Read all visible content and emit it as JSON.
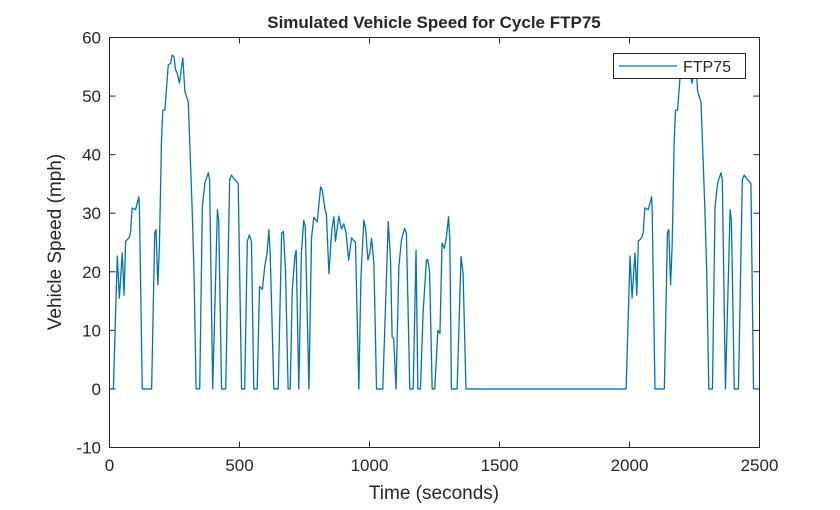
{
  "chart_data": {
    "type": "line",
    "title": "Simulated Vehicle Speed for Cycle FTP75",
    "xlabel": "Time (seconds)",
    "ylabel": "Vehicle Speed (mph)",
    "xlim": [
      0,
      2500
    ],
    "ylim": [
      -10,
      60
    ],
    "xticks": [
      0,
      500,
      1000,
      1500,
      2000,
      2500
    ],
    "yticks": [
      -10,
      0,
      10,
      20,
      30,
      40,
      50,
      60
    ],
    "grid": false,
    "legend": {
      "placement": "top-right",
      "entries": [
        "FTP75"
      ]
    },
    "series": [
      {
        "name": "FTP75",
        "color": "#0072BD",
        "points": [
          [
            0,
            0
          ],
          [
            15,
            0
          ],
          [
            30,
            22.7
          ],
          [
            38,
            15.5
          ],
          [
            49,
            23.2
          ],
          [
            56,
            16
          ],
          [
            62,
            25.2
          ],
          [
            75,
            25.8
          ],
          [
            81,
            26.8
          ],
          [
            87,
            30.9
          ],
          [
            100,
            30.6
          ],
          [
            113,
            32.8
          ],
          [
            115,
            31
          ],
          [
            126,
            0
          ],
          [
            162,
            0
          ],
          [
            174,
            26.7
          ],
          [
            179,
            27.2
          ],
          [
            186,
            17.8
          ],
          [
            192,
            24.4
          ],
          [
            200,
            42.5
          ],
          [
            205,
            47.6
          ],
          [
            213,
            47.6
          ],
          [
            226,
            55.3
          ],
          [
            235,
            55.6
          ],
          [
            241,
            57
          ],
          [
            248,
            56.7
          ],
          [
            254,
            54.5
          ],
          [
            260,
            54
          ],
          [
            269,
            52.2
          ],
          [
            277,
            55
          ],
          [
            282,
            56.5
          ],
          [
            290,
            50.8
          ],
          [
            303,
            49
          ],
          [
            312,
            38
          ],
          [
            318,
            30.6
          ],
          [
            325,
            20
          ],
          [
            333,
            0
          ],
          [
            347,
            0
          ],
          [
            357,
            31
          ],
          [
            367,
            35.2
          ],
          [
            380,
            36.9
          ],
          [
            385,
            35.7
          ],
          [
            397,
            0
          ],
          [
            415,
            30.6
          ],
          [
            420,
            28.8
          ],
          [
            431,
            0
          ],
          [
            447,
            0
          ],
          [
            462,
            35.7
          ],
          [
            469,
            36.5
          ],
          [
            482,
            35.7
          ],
          [
            495,
            35.1
          ],
          [
            508,
            0
          ],
          [
            520,
            0
          ],
          [
            530,
            25.2
          ],
          [
            538,
            26.3
          ],
          [
            546,
            25.2
          ],
          [
            555,
            0
          ],
          [
            568,
            0
          ],
          [
            577,
            17.5
          ],
          [
            588,
            17
          ],
          [
            597,
            20.9
          ],
          [
            606,
            23.2
          ],
          [
            613,
            27.2
          ],
          [
            618,
            23.2
          ],
          [
            632,
            0
          ],
          [
            649,
            0
          ],
          [
            662,
            26.6
          ],
          [
            669,
            26.9
          ],
          [
            677,
            20
          ],
          [
            687,
            0
          ],
          [
            695,
            0
          ],
          [
            703,
            16.9
          ],
          [
            713,
            22.6
          ],
          [
            718,
            23.7
          ],
          [
            728,
            0
          ],
          [
            738,
            23.2
          ],
          [
            747,
            28.8
          ],
          [
            753,
            27.7
          ],
          [
            767,
            0
          ],
          [
            777,
            25.8
          ],
          [
            786,
            29.3
          ],
          [
            799,
            28.5
          ],
          [
            812,
            34.5
          ],
          [
            818,
            34
          ],
          [
            829,
            30.6
          ],
          [
            834,
            30
          ],
          [
            844,
            19.7
          ],
          [
            855,
            27.2
          ],
          [
            863,
            29.4
          ],
          [
            869,
            25.2
          ],
          [
            882,
            29.5
          ],
          [
            892,
            27.3
          ],
          [
            901,
            28.2
          ],
          [
            910,
            26.6
          ],
          [
            920,
            22
          ],
          [
            931,
            25.8
          ],
          [
            946,
            25
          ],
          [
            959,
            0
          ],
          [
            967,
            19
          ],
          [
            978,
            28.8
          ],
          [
            985,
            27.4
          ],
          [
            994,
            22
          ],
          [
            1001,
            23.2
          ],
          [
            1008,
            25.7
          ],
          [
            1017,
            21.3
          ],
          [
            1027,
            0
          ],
          [
            1051,
            0
          ],
          [
            1063,
            16
          ],
          [
            1072,
            28.6
          ],
          [
            1081,
            22
          ],
          [
            1087,
            8.9
          ],
          [
            1093,
            8.6
          ],
          [
            1102,
            0
          ],
          [
            1113,
            20.9
          ],
          [
            1123,
            25.5
          ],
          [
            1135,
            27.4
          ],
          [
            1142,
            26.6
          ],
          [
            1155,
            0
          ],
          [
            1168,
            0
          ],
          [
            1179,
            23.7
          ],
          [
            1186,
            0
          ],
          [
            1196,
            0
          ],
          [
            1206,
            12.9
          ],
          [
            1219,
            22
          ],
          [
            1224,
            22.1
          ],
          [
            1231,
            20
          ],
          [
            1241,
            0
          ],
          [
            1251,
            0
          ],
          [
            1263,
            10
          ],
          [
            1271,
            9.5
          ],
          [
            1279,
            24.9
          ],
          [
            1288,
            24
          ],
          [
            1296,
            26
          ],
          [
            1304,
            29.4
          ],
          [
            1309,
            25.5
          ],
          [
            1315,
            0
          ],
          [
            1337,
            0
          ],
          [
            1352,
            22.6
          ],
          [
            1360,
            19.7
          ],
          [
            1371,
            0
          ],
          [
            1987,
            0
          ],
          [
            2002,
            22.7
          ],
          [
            2010,
            15.5
          ],
          [
            2021,
            23.2
          ],
          [
            2028,
            16
          ],
          [
            2034,
            25.2
          ],
          [
            2047,
            25.8
          ],
          [
            2053,
            26.8
          ],
          [
            2059,
            30.9
          ],
          [
            2072,
            30.6
          ],
          [
            2085,
            32.8
          ],
          [
            2087,
            31
          ],
          [
            2098,
            0
          ],
          [
            2134,
            0
          ],
          [
            2146,
            26.7
          ],
          [
            2151,
            27.2
          ],
          [
            2158,
            17.8
          ],
          [
            2164,
            24.4
          ],
          [
            2172,
            42.5
          ],
          [
            2177,
            47.6
          ],
          [
            2185,
            47.6
          ],
          [
            2198,
            55.3
          ],
          [
            2207,
            55.6
          ],
          [
            2213,
            57
          ],
          [
            2220,
            56.7
          ],
          [
            2226,
            54.5
          ],
          [
            2232,
            54
          ],
          [
            2241,
            52.2
          ],
          [
            2249,
            55
          ],
          [
            2254,
            56.5
          ],
          [
            2262,
            50.8
          ],
          [
            2275,
            49
          ],
          [
            2284,
            38
          ],
          [
            2290,
            30.6
          ],
          [
            2297,
            20
          ],
          [
            2305,
            0
          ],
          [
            2319,
            0
          ],
          [
            2329,
            31
          ],
          [
            2339,
            35.2
          ],
          [
            2352,
            36.9
          ],
          [
            2357,
            35.7
          ],
          [
            2369,
            0
          ],
          [
            2387,
            30.6
          ],
          [
            2392,
            28.8
          ],
          [
            2403,
            0
          ],
          [
            2419,
            0
          ],
          [
            2434,
            35.7
          ],
          [
            2441,
            36.5
          ],
          [
            2454,
            35.7
          ],
          [
            2467,
            35.1
          ],
          [
            2477,
            0
          ]
        ]
      }
    ]
  }
}
